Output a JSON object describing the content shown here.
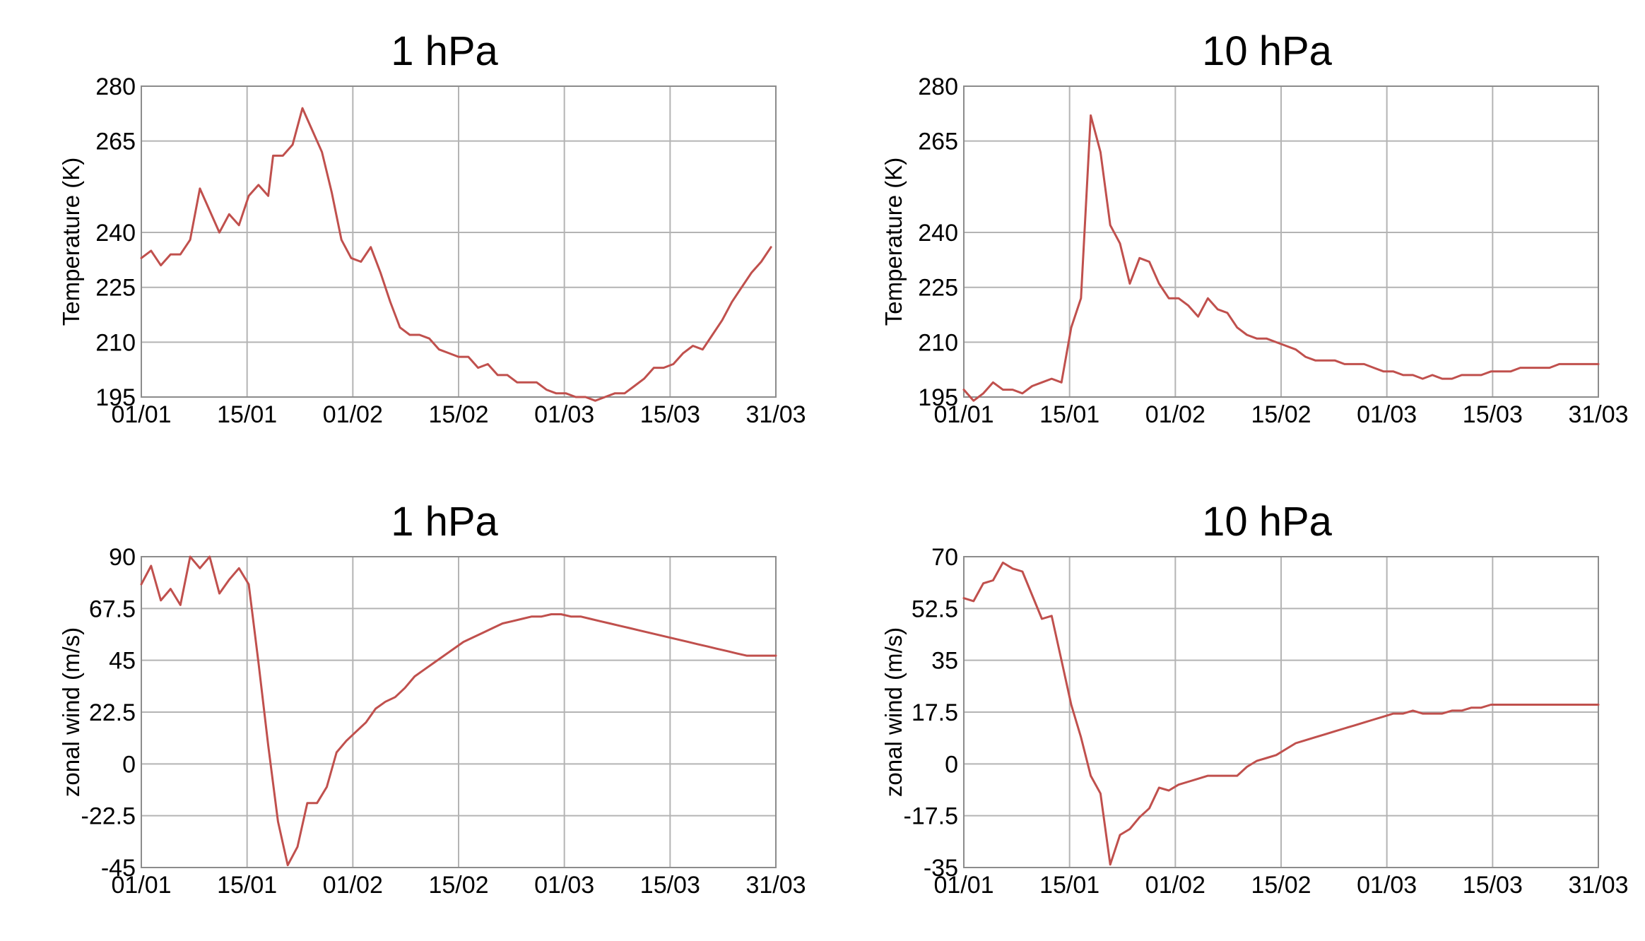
{
  "colors": {
    "series": "#c0504d"
  },
  "chart_data": [
    {
      "type": "line",
      "title": "1 hPa",
      "xlabel": "",
      "ylabel": "Temperature (K)",
      "x_ticks": [
        "01/01",
        "15/01",
        "01/02",
        "15/02",
        "01/03",
        "15/03",
        "31/03"
      ],
      "y_ticks": [
        "195",
        "210",
        "225",
        "240",
        "265",
        "280"
      ],
      "ylim": [
        195,
        280
      ],
      "series": [
        {
          "x": [
            0,
            2,
            4,
            6,
            8,
            10,
            12,
            14,
            16,
            18,
            20,
            22,
            24,
            26,
            27,
            29,
            31,
            33,
            35,
            37,
            39,
            41,
            43,
            45,
            47,
            49,
            51,
            53,
            55,
            57,
            59,
            61,
            63,
            65,
            67,
            69,
            71,
            73,
            75,
            77,
            79,
            81,
            83,
            85,
            87,
            89,
            91,
            93,
            95,
            97,
            99,
            101,
            103,
            105,
            107,
            109,
            111,
            113,
            115,
            117,
            119,
            121,
            123,
            125,
            127,
            129
          ],
          "y": [
            233,
            235,
            231,
            234,
            234,
            238,
            252,
            246,
            240,
            245,
            242,
            250,
            253,
            250,
            261,
            261,
            264,
            274,
            268,
            262,
            251,
            238,
            233,
            232,
            236,
            229,
            221,
            214,
            212,
            212,
            211,
            208,
            207,
            206,
            206,
            203,
            204,
            201,
            201,
            199,
            199,
            199,
            197,
            196,
            196,
            195,
            195,
            194,
            195,
            196,
            196,
            198,
            200,
            203,
            203,
            204,
            207,
            209,
            208,
            212,
            216,
            221,
            225,
            229,
            232,
            236
          ]
        }
      ]
    },
    {
      "type": "line",
      "title": "10 hPa",
      "xlabel": "",
      "ylabel": "Temperature (K)",
      "x_ticks": [
        "01/01",
        "15/01",
        "01/02",
        "15/02",
        "01/03",
        "15/03",
        "31/03"
      ],
      "y_ticks": [
        "195",
        "210",
        "225",
        "240",
        "265",
        "280"
      ],
      "ylim": [
        195,
        280
      ],
      "series": [
        {
          "x": [
            0,
            2,
            4,
            6,
            8,
            10,
            12,
            14,
            16,
            18,
            20,
            22,
            24,
            26,
            28,
            30,
            32,
            34,
            36,
            38,
            40,
            42,
            44,
            46,
            48,
            50,
            52,
            54,
            56,
            58,
            60,
            62,
            64,
            66,
            68,
            70,
            72,
            74,
            76,
            78,
            80,
            82,
            84,
            86,
            88,
            90,
            92,
            94,
            96,
            98,
            100,
            102,
            104,
            106,
            108,
            110,
            112,
            114,
            116,
            118,
            120,
            122,
            124,
            126,
            128,
            130
          ],
          "y": [
            197,
            194,
            196,
            199,
            197,
            197,
            196,
            198,
            199,
            200,
            199,
            214,
            222,
            272,
            262,
            242,
            237,
            226,
            233,
            232,
            226,
            222,
            222,
            220,
            217,
            222,
            219,
            218,
            214,
            212,
            211,
            211,
            210,
            209,
            208,
            206,
            205,
            205,
            205,
            204,
            204,
            204,
            203,
            202,
            202,
            201,
            201,
            200,
            201,
            200,
            200,
            201,
            201,
            201,
            202,
            202,
            202,
            203,
            203,
            203,
            203,
            204,
            204,
            204,
            204,
            204
          ]
        }
      ]
    },
    {
      "type": "line",
      "title": "1 hPa",
      "xlabel": "",
      "ylabel": "zonal wind (m/s)",
      "x_ticks": [
        "01/01",
        "15/01",
        "01/02",
        "15/02",
        "01/03",
        "15/03",
        "31/03"
      ],
      "y_ticks": [
        "-45",
        "-22.5",
        "0",
        "22.5",
        "45",
        "67.5",
        "90"
      ],
      "ylim": [
        -45,
        90
      ],
      "series": [
        {
          "x": [
            0,
            2,
            4,
            6,
            8,
            10,
            12,
            14,
            16,
            18,
            20,
            22,
            24,
            26,
            28,
            30,
            32,
            34,
            36,
            38,
            40,
            42,
            44,
            46,
            48,
            50,
            52,
            54,
            56,
            58,
            60,
            62,
            64,
            66,
            68,
            70,
            72,
            74,
            76,
            78,
            80,
            82,
            84,
            86,
            88,
            90,
            92,
            94,
            96,
            98,
            100,
            102,
            104,
            106,
            108,
            110,
            112,
            114,
            116,
            118,
            120,
            122,
            124,
            126,
            128,
            130
          ],
          "y": [
            78,
            86,
            71,
            76,
            69,
            90,
            85,
            90,
            74,
            80,
            85,
            78,
            44,
            8,
            -25,
            -44,
            -36,
            -17,
            -17,
            -10,
            5,
            10,
            14,
            18,
            24,
            27,
            29,
            33,
            38,
            41,
            44,
            47,
            50,
            53,
            55,
            57,
            59,
            61,
            62,
            63,
            64,
            64,
            65,
            65,
            64,
            64,
            63,
            62,
            61,
            60,
            59,
            58,
            57,
            56,
            55,
            54,
            53,
            52,
            51,
            50,
            49,
            48,
            47,
            47,
            47,
            47
          ]
        }
      ]
    },
    {
      "type": "line",
      "title": "10 hPa",
      "xlabel": "",
      "ylabel": "zonal wind (m/s)",
      "x_ticks": [
        "01/01",
        "15/01",
        "01/02",
        "15/02",
        "01/03",
        "15/03",
        "31/03"
      ],
      "y_ticks": [
        "-35",
        "-17.5",
        "0",
        "17.5",
        "35",
        "52.5",
        "70"
      ],
      "ylim": [
        -35,
        70
      ],
      "series": [
        {
          "x": [
            0,
            2,
            4,
            6,
            8,
            10,
            12,
            14,
            16,
            18,
            20,
            22,
            24,
            26,
            28,
            30,
            32,
            34,
            36,
            38,
            40,
            42,
            44,
            46,
            48,
            50,
            52,
            54,
            56,
            58,
            60,
            62,
            64,
            66,
            68,
            70,
            72,
            74,
            76,
            78,
            80,
            82,
            84,
            86,
            88,
            90,
            92,
            94,
            96,
            98,
            100,
            102,
            104,
            106,
            108,
            110,
            112,
            114,
            116,
            118,
            120,
            122,
            124,
            126,
            128,
            130
          ],
          "y": [
            56,
            55,
            61,
            62,
            68,
            66,
            65,
            57,
            49,
            50,
            35,
            20,
            9,
            -4,
            -10,
            -34,
            -24,
            -22,
            -18,
            -15,
            -8,
            -9,
            -7,
            -6,
            -5,
            -4,
            -4,
            -4,
            -4,
            -1,
            1,
            2,
            3,
            5,
            7,
            8,
            9,
            10,
            11,
            12,
            13,
            14,
            15,
            16,
            17,
            17,
            18,
            17,
            17,
            17,
            18,
            18,
            19,
            19,
            20,
            20,
            20,
            20,
            20,
            20,
            20,
            20,
            20,
            20,
            20,
            20
          ]
        }
      ]
    }
  ]
}
